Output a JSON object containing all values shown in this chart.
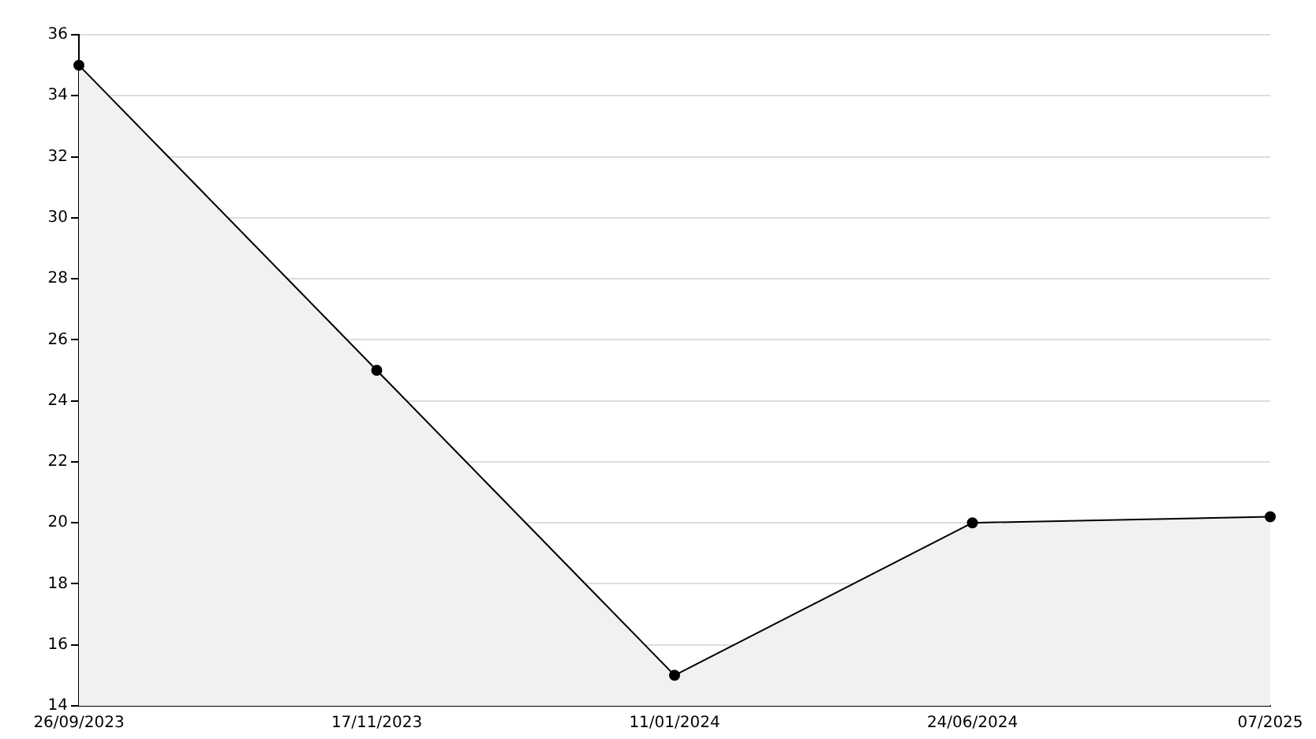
{
  "chart_data": {
    "type": "area",
    "categories": [
      "26/09/2023",
      "17/11/2023",
      "11/01/2024",
      "24/06/2024",
      "07/2025"
    ],
    "series": [
      {
        "color": "#000000",
        "values": [
          35,
          25,
          15,
          20,
          20.2
        ]
      }
    ],
    "ylim": [
      14,
      36
    ],
    "yticks": [
      14,
      16,
      18,
      20,
      22,
      24,
      26,
      28,
      30,
      32,
      34,
      36
    ],
    "grid": "y",
    "legend": false,
    "marker": "circle"
  }
}
